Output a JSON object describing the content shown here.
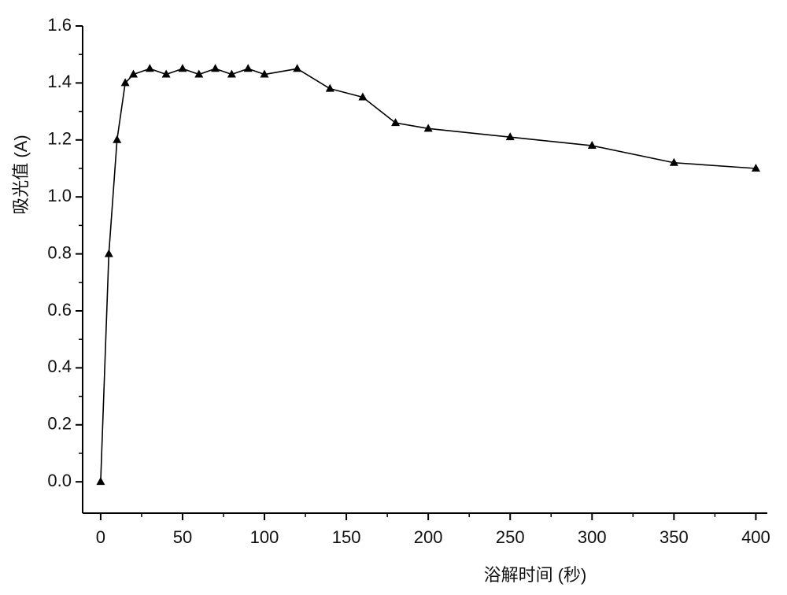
{
  "chart_data": {
    "type": "line",
    "x_label": "浴解时间 (秒)",
    "y_label": "吸光值 (A)",
    "x": [
      0,
      5,
      10,
      15,
      20,
      30,
      40,
      50,
      60,
      70,
      80,
      90,
      100,
      120,
      140,
      160,
      180,
      200,
      250,
      300,
      350,
      400
    ],
    "series": [
      {
        "color": "#000000",
        "marker": "triangle",
        "values": [
          0.0,
          0.8,
          1.2,
          1.4,
          1.43,
          1.45,
          1.43,
          1.45,
          1.43,
          1.45,
          1.43,
          1.45,
          1.43,
          1.45,
          1.38,
          1.35,
          1.26,
          1.24,
          1.21,
          1.18,
          1.12,
          1.1
        ]
      }
    ],
    "xlim": [
      -11,
      407
    ],
    "ylim": [
      -0.11,
      1.6
    ],
    "xticks": [
      0,
      50,
      100,
      150,
      200,
      250,
      300,
      350,
      400
    ],
    "yticks": [
      {
        "value": 0,
        "label": "0.0"
      },
      {
        "value": 0.2,
        "label": "0.2"
      },
      {
        "value": 0.4,
        "label": "0.4"
      },
      {
        "value": 0.6,
        "label": "0.6"
      },
      {
        "value": 0.8,
        "label": "0.8"
      },
      {
        "value": 1.0,
        "label": "1.0"
      },
      {
        "value": 1.2,
        "label": "1.2"
      },
      {
        "value": 1.4,
        "label": "1.4"
      },
      {
        "value": 1.6,
        "label": "1.6"
      }
    ],
    "minor_xticks": [
      25,
      75,
      125,
      175,
      225,
      275,
      325,
      375
    ],
    "minor_yticks": [
      0.1,
      0.3,
      0.5,
      0.7,
      0.9,
      1.1,
      1.3,
      1.5
    ],
    "grid": false
  }
}
